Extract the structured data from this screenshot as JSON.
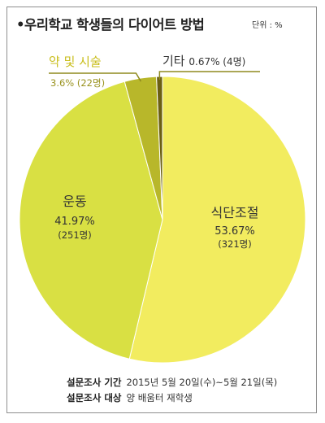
{
  "header": {
    "title": "•우리학교 학생들의 다이어트 방법",
    "unit": "단위 : %"
  },
  "chart_data": {
    "type": "pie",
    "title": "우리학교 학생들의 다이어트 방법",
    "unit": "%",
    "slices": [
      {
        "label": "식단조절",
        "value": 53.67,
        "value_text": "53.67%",
        "count_text": "(321명)",
        "color": "#f2ec5f"
      },
      {
        "label": "운동",
        "value": 41.97,
        "value_text": "41.97%",
        "count_text": "(251명)",
        "color": "#d9e043"
      },
      {
        "label": "약 및 시술",
        "value": 3.6,
        "value_text": "3.6%",
        "count_text": "(22명)",
        "color": "#b8b72a"
      },
      {
        "label": "기타",
        "value": 0.67,
        "value_text": "0.67%",
        "count_text": "(4명)",
        "color": "#6b5f12"
      }
    ],
    "colors": {
      "leader_line": "#8f8a1f",
      "label_yellow": "#c9be1c"
    }
  },
  "footer": {
    "period_label": "설문조사 기간",
    "period_value": "2015년 5월 20일(수)~5월 21일(목)",
    "target_label": "설문조사 대상",
    "target_value": "양 배움터 재학생"
  }
}
